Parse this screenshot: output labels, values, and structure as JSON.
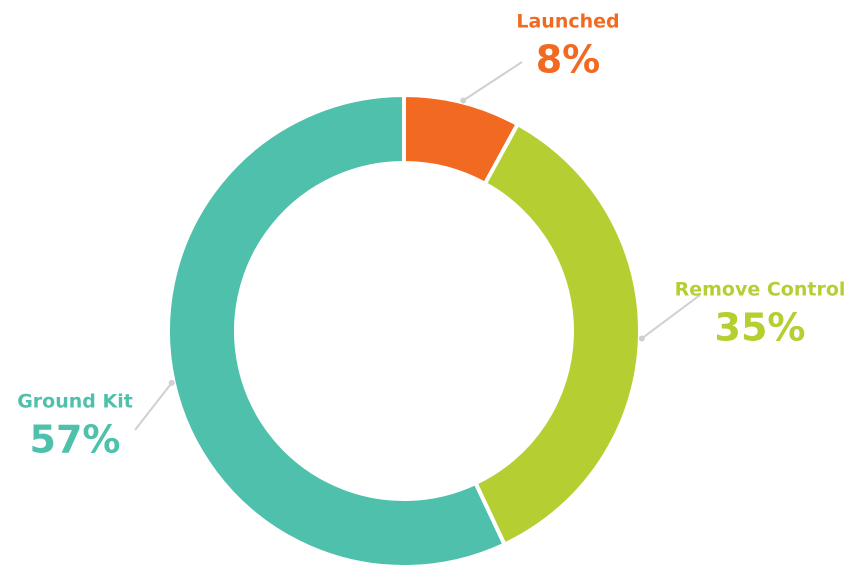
{
  "chart_data": {
    "type": "donut",
    "categories": [
      "Launched",
      "Remove Control",
      "Ground Kit"
    ],
    "values": [
      8,
      35,
      57
    ],
    "value_labels": [
      "8%",
      "35%",
      "57%"
    ],
    "colors": [
      "#f26a21",
      "#b5cf33",
      "#4fc0ab"
    ]
  }
}
